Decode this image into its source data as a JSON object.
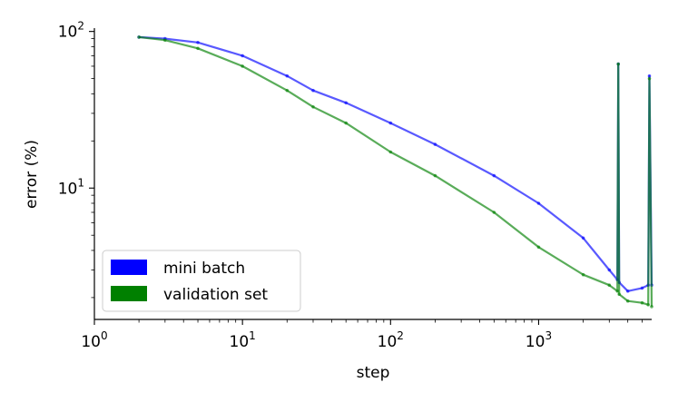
{
  "chart_data": {
    "type": "scatter",
    "xlabel": "step",
    "ylabel": "error (%)",
    "xscale": "log",
    "yscale": "log",
    "xlim": [
      1,
      5800
    ],
    "ylim": [
      1.45,
      105
    ],
    "grid": false,
    "legend_position": "lower-left",
    "x_ticks": [
      {
        "base": "10",
        "exp": "0"
      },
      {
        "base": "10",
        "exp": "1"
      },
      {
        "base": "10",
        "exp": "2"
      },
      {
        "base": "10",
        "exp": "3"
      }
    ],
    "y_ticks": [
      {
        "base": "10",
        "exp": "1"
      },
      {
        "base": "10",
        "exp": "2"
      }
    ],
    "series": [
      {
        "name": "mini batch",
        "color": "#0000ff",
        "x": [
          2,
          3,
          5,
          10,
          20,
          30,
          50,
          100,
          200,
          500,
          1000,
          2000,
          3000,
          3400,
          3450,
          3500,
          4000,
          5000,
          5500,
          5600,
          5800
        ],
        "y": [
          92,
          90,
          85,
          70,
          52,
          42,
          35,
          26,
          19,
          12,
          8,
          4.8,
          3,
          2.6,
          62,
          2.5,
          2.2,
          2.3,
          2.4,
          52,
          2.4
        ]
      },
      {
        "name": "validation set",
        "color": "#008000",
        "x": [
          2,
          3,
          5,
          10,
          20,
          30,
          50,
          100,
          200,
          500,
          1000,
          2000,
          3000,
          3400,
          3450,
          3500,
          4000,
          5000,
          5500,
          5600,
          5800
        ],
        "y": [
          92,
          88,
          78,
          60,
          42,
          33,
          26,
          17,
          12,
          7,
          4.2,
          2.8,
          2.4,
          2.2,
          62,
          2.1,
          1.9,
          1.85,
          1.8,
          50,
          1.75
        ]
      }
    ]
  }
}
